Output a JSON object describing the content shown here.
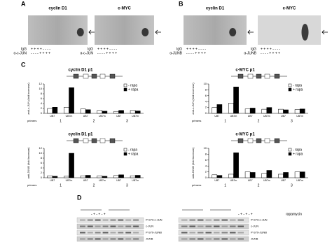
{
  "panels": {
    "letters": [
      "A",
      "B",
      "C",
      "D"
    ],
    "gels": [
      {
        "title": "cyclin D1",
        "rows": [
          {
            "label": "IgG",
            "signs": "+ + + + - - - -"
          },
          {
            "label": "α-c-JUN",
            "signs": "- - - - + + + +"
          }
        ]
      },
      {
        "title": "c-MYC",
        "rows": [
          {
            "label": "IgG",
            "signs": "+ + + + - - - -"
          },
          {
            "label": "α-c-JUN",
            "signs": "- - - - + + + +"
          }
        ]
      },
      {
        "title": "cyclin D1",
        "rows": [
          {
            "label": "IgG",
            "signs": "+ + + + - - - -"
          },
          {
            "label": "α-JUNB",
            "signs": "- - - - + + + +"
          }
        ]
      },
      {
        "title": "c-MYC",
        "rows": [
          {
            "label": "IgG",
            "signs": "+ + + + - - - -"
          },
          {
            "label": "α-JUNB",
            "signs": "- - - - + + + +"
          }
        ]
      }
    ],
    "blots": {
      "treatment": "rapamycin",
      "signs": "- + - + - +",
      "left": [
        "P-S73-c-JUN",
        "c-JUN",
        "P-S79-JUNB",
        "JUNB"
      ],
      "right": [
        "P-S73-c-JUN",
        "c-JUN",
        "P-S79-JUNB",
        "JUNB"
      ]
    }
  },
  "chart_data": [
    {
      "type": "bar",
      "title": "cyclin D1 p1",
      "ylabel": "anti-c-JUN (fold increase)",
      "xlabel": "primers",
      "categories": [
        "UB7",
        "UB7m",
        "UB7",
        "UB7m",
        "UB7",
        "UB7m"
      ],
      "group_labels": [
        "1",
        "2",
        "3"
      ],
      "ylim": [
        0,
        12
      ],
      "yticks": [
        0,
        2,
        4,
        6,
        8,
        10,
        12
      ],
      "series": [
        {
          "name": "- rapa",
          "color": "#ffffff",
          "values": [
            2,
            2.5,
            1.8,
            1.2,
            0.8,
            1.2
          ]
        },
        {
          "name": "+ rapa",
          "color": "#000000",
          "values": [
            2.5,
            10.5,
            1.5,
            0.9,
            1.2,
            1.0
          ]
        }
      ]
    },
    {
      "type": "bar",
      "title": "c-MYC p1",
      "ylabel": "anti-c-JUN (fold increase)",
      "xlabel": "primers",
      "categories": [
        "UB7",
        "UB7m",
        "UB7",
        "UB7m",
        "UB7",
        "UB7m"
      ],
      "group_labels": [
        "1",
        "2",
        "3"
      ],
      "ylim": [
        0,
        10
      ],
      "yticks": [
        0,
        2,
        4,
        6,
        8,
        10
      ],
      "series": [
        {
          "name": "- rapa",
          "color": "#ffffff",
          "values": [
            2,
            3.5,
            1.5,
            1.4,
            1.4,
            1.3
          ]
        },
        {
          "name": "+ rapa",
          "color": "#000000",
          "values": [
            3,
            9,
            1.8,
            2,
            1.2,
            1.5
          ]
        }
      ]
    },
    {
      "type": "bar",
      "title": "cyclin D1 p1",
      "ylabel": "anti-JUNB (fold increase)",
      "xlabel": "primers",
      "categories": [
        "UB7",
        "UB7m",
        "UB7",
        "UB7m",
        "UB7",
        "UB7m"
      ],
      "group_labels": [
        "1",
        "2",
        "3"
      ],
      "ylim": [
        0,
        12
      ],
      "yticks": [
        0,
        2,
        4,
        6,
        8,
        10,
        12
      ],
      "series": [
        {
          "name": "- rapa",
          "color": "#ffffff",
          "values": [
            0.8,
            0.6,
            0.8,
            0.8,
            0.9,
            0.8
          ]
        },
        {
          "name": "+ rapa",
          "color": "#000000",
          "values": [
            0.6,
            10,
            1,
            0.6,
            1.2,
            1
          ]
        }
      ]
    },
    {
      "type": "bar",
      "title": "c-MYC p1",
      "ylabel": "anti-JUNB (fold increase)",
      "xlabel": "primers",
      "categories": [
        "UB7",
        "UB7m",
        "UB7",
        "UB7m",
        "UB7",
        "UB7m"
      ],
      "group_labels": [
        "1",
        "2",
        "3"
      ],
      "ylim": [
        0,
        10
      ],
      "yticks": [
        0,
        2,
        4,
        6,
        8,
        10
      ],
      "series": [
        {
          "name": "- rapa",
          "color": "#ffffff",
          "values": [
            1,
            1.2,
            2,
            1.5,
            1.2,
            2
          ]
        },
        {
          "name": "+ rapa",
          "color": "#000000",
          "values": [
            0.8,
            8.5,
            1.8,
            2.5,
            1.8,
            2
          ]
        }
      ]
    }
  ]
}
